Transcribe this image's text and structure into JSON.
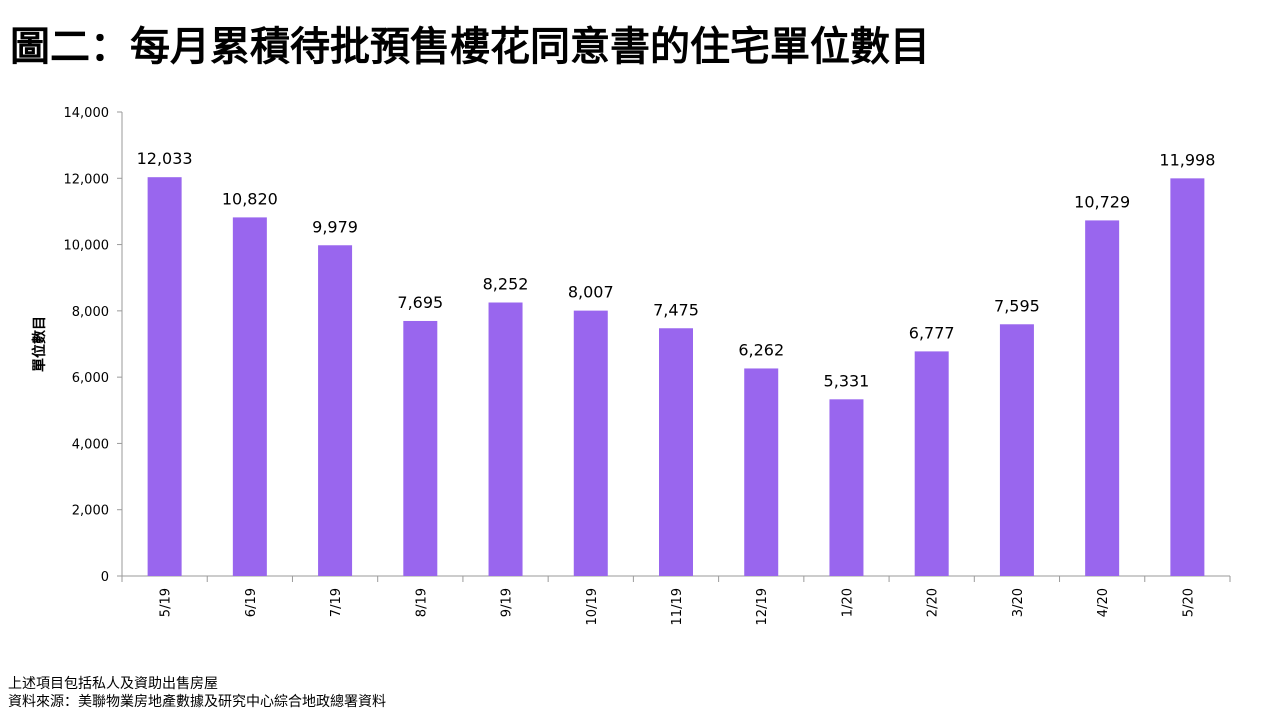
{
  "title": "圖二：每月累積待批預售樓花同意書的住宅單位數目",
  "footnotes": {
    "note": "上述項目包括私人及資助出售房屋",
    "source": "資料來源：美聯物業房地產數據及研究中心綜合地政總署資料"
  },
  "colors": {
    "bar": "#9966ee",
    "axis": "#9a9a9a"
  },
  "chart_data": {
    "type": "bar",
    "categories": [
      "5/19",
      "6/19",
      "7/19",
      "8/19",
      "9/19",
      "10/19",
      "11/19",
      "12/19",
      "1/20",
      "2/20",
      "3/20",
      "4/20",
      "5/20"
    ],
    "values": [
      12033,
      10820,
      9979,
      7695,
      8252,
      8007,
      7475,
      6262,
      5331,
      6777,
      7595,
      10729,
      11998
    ],
    "data_labels": [
      "12,033",
      "10,820",
      "9,979",
      "7,695",
      "8,252",
      "8,007",
      "7,475",
      "6,262",
      "5,331",
      "6,777",
      "7,595",
      "10,729",
      "11,998"
    ],
    "ylabel": "單位數目",
    "xlabel": "",
    "ylim": [
      0,
      14000
    ],
    "yticks": [
      0,
      2000,
      4000,
      6000,
      8000,
      10000,
      12000,
      14000
    ],
    "ytick_labels": [
      "0",
      "2,000",
      "4,000",
      "6,000",
      "8,000",
      "10,000",
      "12,000",
      "14,000"
    ],
    "grid": false,
    "legend": "none"
  }
}
